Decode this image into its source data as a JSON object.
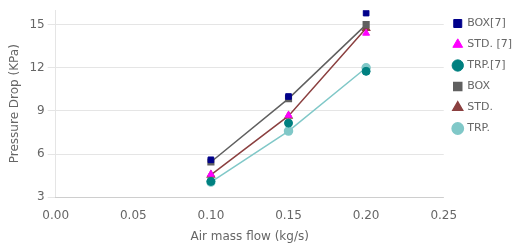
{
  "chart_data": {
    "type": "line",
    "xlabel": "Air mass flow (kg/s)",
    "ylabel": "Pressure Drop (KPa)",
    "xlim": [
      0,
      0.25
    ],
    "ylim": [
      3,
      16
    ],
    "xticks": [
      {
        "value": 0,
        "label": "0.00"
      },
      {
        "value": 0.05,
        "label": "0.05"
      },
      {
        "value": 0.1,
        "label": "0.10"
      },
      {
        "value": 0.15,
        "label": "0.15"
      },
      {
        "value": 0.2,
        "label": "0.20"
      },
      {
        "value": 0.25,
        "label": "0.25"
      }
    ],
    "yticks": [
      3,
      6,
      9,
      12,
      15
    ],
    "grid": "y",
    "legend": "upper right",
    "series": [
      {
        "name": "BOX[7]",
        "color": "#00008B",
        "marker": "square",
        "line_style": "none",
        "x": [
          0.1,
          0.15,
          0.2
        ],
        "values": [
          5.6,
          10.0,
          15.8
        ]
      },
      {
        "name": "STD. [7]",
        "color": "#FF00FF",
        "marker": "triangle",
        "line_style": "none",
        "x": [
          0.1,
          0.15,
          0.2
        ],
        "values": [
          4.6,
          8.7,
          14.4
        ]
      },
      {
        "name": "TRP.[7]",
        "color": "#008080",
        "marker": "circle",
        "line_style": "none",
        "x": [
          0.1,
          0.15,
          0.2
        ],
        "values": [
          4.1,
          8.15,
          11.75
        ]
      },
      {
        "name": "BOX",
        "color": "#606060",
        "marker": "square",
        "line_style": "solid",
        "x": [
          0.1,
          0.15,
          0.2
        ],
        "values": [
          5.45,
          9.85,
          15.0
        ]
      },
      {
        "name": "STD.",
        "color": "#8B4040",
        "marker": "triangle",
        "line_style": "solid",
        "x": [
          0.1,
          0.15,
          0.2
        ],
        "values": [
          4.55,
          8.65,
          14.75
        ]
      },
      {
        "name": "TRP.",
        "color": "#80C8C8",
        "marker": "circle",
        "line_style": "solid",
        "x": [
          0.1,
          0.15,
          0.2
        ],
        "values": [
          4.05,
          7.6,
          12.0
        ]
      }
    ]
  }
}
